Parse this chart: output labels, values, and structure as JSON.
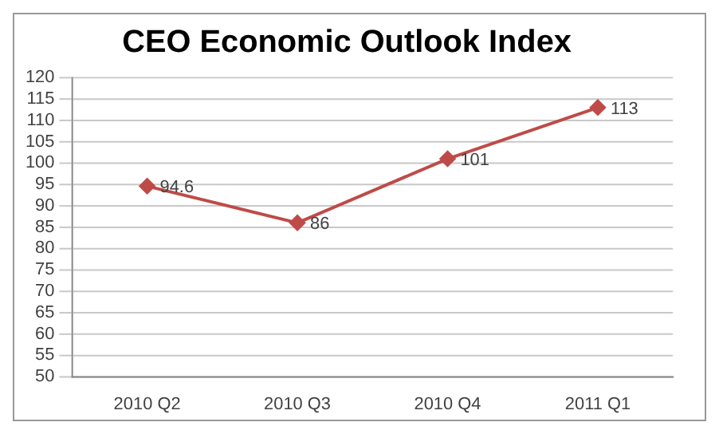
{
  "chart_data": {
    "type": "line",
    "title": "CEO Economic Outlook Index",
    "categories": [
      "2010 Q2",
      "2010 Q3",
      "2010 Q4",
      "2011 Q1"
    ],
    "series": [
      {
        "color": "#be4b48",
        "values": [
          94.6,
          86,
          101,
          113
        ]
      }
    ],
    "ylim": [
      50,
      120
    ],
    "yticks": [
      50,
      55,
      60,
      65,
      70,
      75,
      80,
      85,
      90,
      95,
      100,
      105,
      110,
      115,
      120
    ],
    "grid": "y",
    "marker": "diamond",
    "line_style": "solid",
    "legend": false,
    "data_labels": true
  }
}
